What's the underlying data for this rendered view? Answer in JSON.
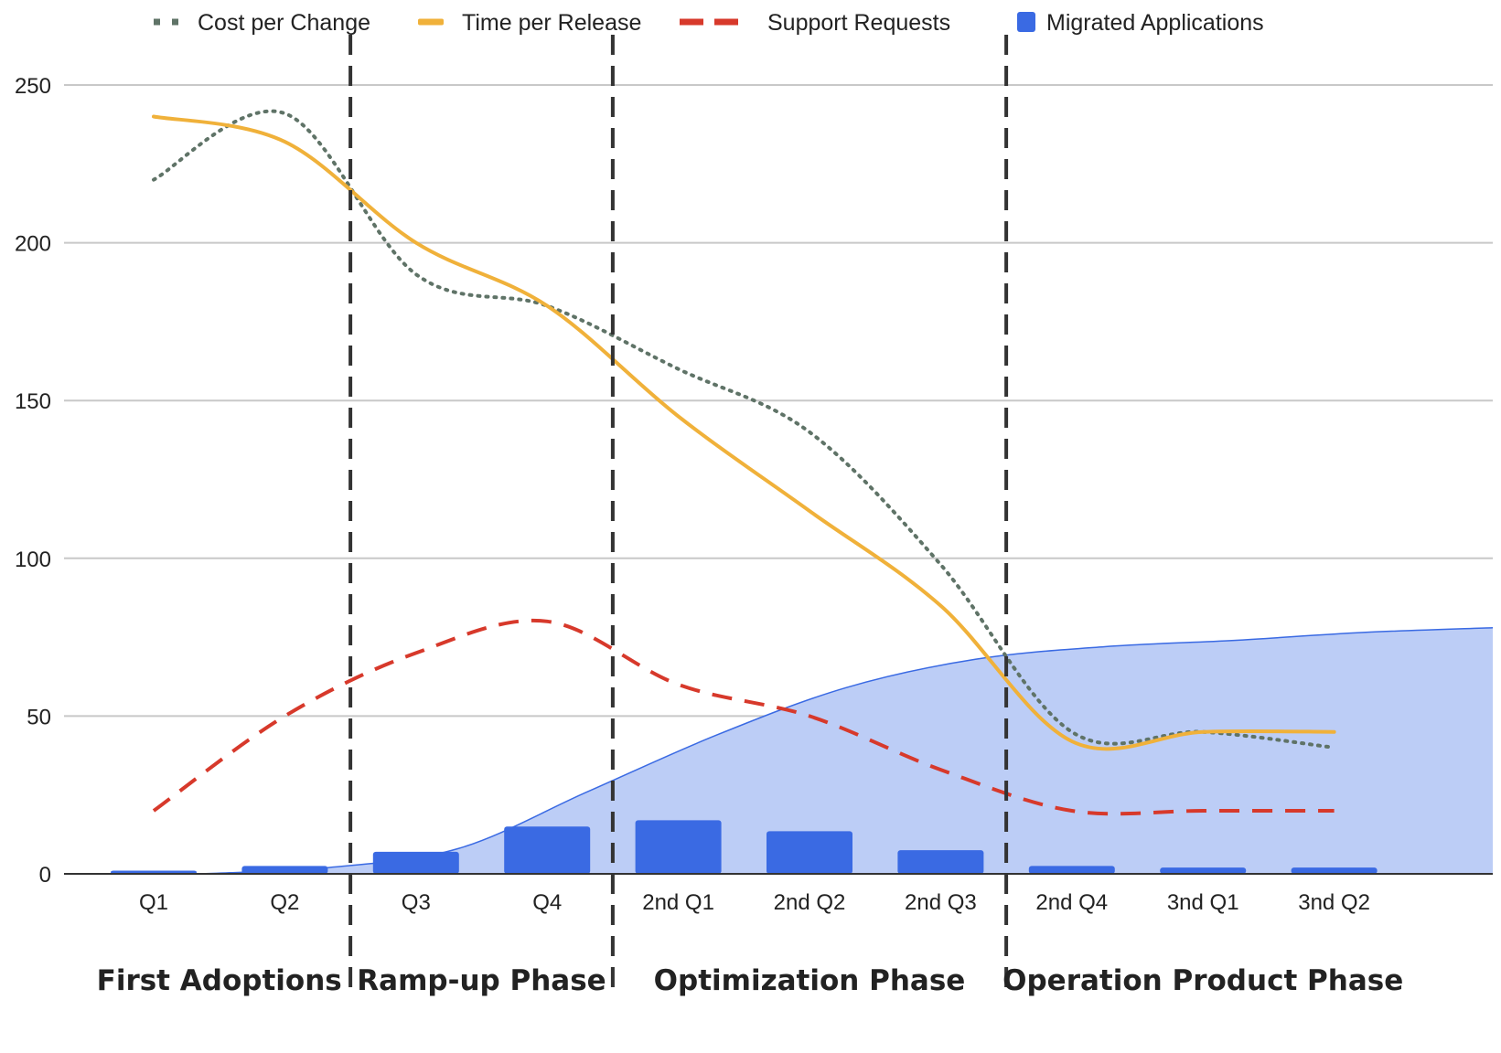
{
  "chart_data": {
    "type": "bar",
    "categories": [
      "Q1",
      "Q2",
      "Q3",
      "Q4",
      "2nd Q1",
      "2nd Q2",
      "2nd Q3",
      "2nd Q4",
      "3nd Q1",
      "3nd Q2"
    ],
    "ylim": [
      0,
      250
    ],
    "yticks": [
      0,
      50,
      100,
      150,
      200,
      250
    ],
    "grid": true,
    "legend_position": "top",
    "series": [
      {
        "name": "Cost per Change",
        "type": "line",
        "style": "dotted",
        "color": "#5f7367",
        "values": [
          220,
          241,
          190,
          180,
          160,
          140,
          98,
          45,
          45,
          40
        ]
      },
      {
        "name": "Time per Release",
        "type": "line",
        "style": "solid",
        "color": "#f0b13a",
        "values": [
          240,
          232,
          200,
          180,
          145,
          115,
          85,
          42,
          45,
          45
        ]
      },
      {
        "name": "Support Requests",
        "type": "line",
        "style": "dashed",
        "color": "#d7392b",
        "values": [
          20,
          50,
          70,
          80,
          60,
          50,
          33,
          20,
          20,
          20
        ]
      },
      {
        "name": "Migrated Applications",
        "type": "bar",
        "color": "#3a6ae3",
        "values": [
          1,
          2.5,
          7,
          15,
          17,
          13.5,
          7.5,
          2.5,
          2,
          2
        ]
      }
    ],
    "area": {
      "color": "#bccdf6",
      "edge_color": "#3a6ae3",
      "values": [
        0,
        2,
        8,
        26,
        44,
        59,
        68,
        72,
        74,
        76.5,
        78
      ]
    },
    "phases": [
      {
        "label": "First Adoptions",
        "start": 0,
        "end": 1
      },
      {
        "label": "Ramp-up Phase",
        "start": 2,
        "end": 3
      },
      {
        "label": "Optimization Phase",
        "start": 4,
        "end": 6
      },
      {
        "label": "Operation Product Phase",
        "start": 7,
        "end": 9
      }
    ],
    "phase_separators_after_index": [
      1,
      3,
      6
    ]
  }
}
